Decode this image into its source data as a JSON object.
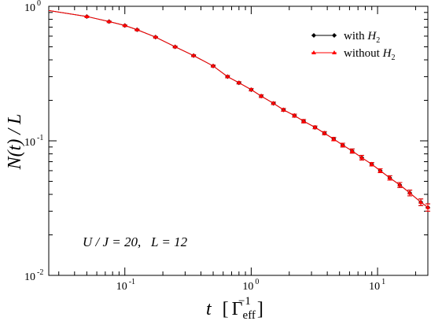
{
  "chart_data": {
    "type": "line",
    "xscale": "log",
    "yscale": "log",
    "xlim": [
      0.025,
      25
    ],
    "ylim": [
      0.01,
      1
    ],
    "xticks": [
      {
        "value": 0.1,
        "base": "10",
        "exp": "-1"
      },
      {
        "value": 1,
        "base": "10",
        "exp": "0"
      },
      {
        "value": 10,
        "base": "10",
        "exp": "1"
      }
    ],
    "yticks": [
      {
        "value": 0.01,
        "base": "10",
        "exp": "-2"
      },
      {
        "value": 0.1,
        "base": "10",
        "exp": "-1"
      },
      {
        "value": 1,
        "base": "10",
        "exp": "0"
      }
    ],
    "xlabel": {
      "main": "t",
      "bracket_open": "[",
      "gamma": "Γ",
      "sub": "eff",
      "sup": "−1",
      "bracket_close": "]"
    },
    "ylabel": "N(t) / L",
    "legend": {
      "position": "top-right",
      "entries": [
        {
          "text": "with ",
          "math": "H",
          "sub": "2",
          "color": "#000000",
          "marker": "diamond"
        },
        {
          "text": "without ",
          "math": "H",
          "sub": "2",
          "color": "#ff0000",
          "marker": "triangle"
        }
      ]
    },
    "annotation": {
      "text": "U / J = 20,   L = 12"
    },
    "grid": false,
    "series": [
      {
        "name": "with H2",
        "color": "#000000",
        "marker": "diamond",
        "x": [
          0.025,
          0.05,
          0.075,
          0.1,
          0.125,
          0.175,
          0.25,
          0.35,
          0.5,
          0.65,
          0.8,
          1.0,
          1.2,
          1.5,
          1.8,
          2.2,
          2.6,
          3.2,
          3.8,
          4.5,
          5.3,
          6.3,
          7.5,
          9.0,
          10.5,
          12.5,
          15.0,
          18.0,
          22.0,
          25.0
        ],
        "y": [
          0.93,
          0.84,
          0.77,
          0.72,
          0.67,
          0.59,
          0.5,
          0.43,
          0.36,
          0.3,
          0.27,
          0.24,
          0.215,
          0.19,
          0.17,
          0.154,
          0.14,
          0.126,
          0.114,
          0.103,
          0.093,
          0.084,
          0.075,
          0.067,
          0.06,
          0.053,
          0.047,
          0.041,
          0.035,
          0.032
        ],
        "err": [
          0.004,
          0.006,
          0.006,
          0.006,
          0.006,
          0.006,
          0.006,
          0.006,
          0.006,
          0.006,
          0.005,
          0.005,
          0.005,
          0.004,
          0.004,
          0.004,
          0.004,
          0.003,
          0.003,
          0.003,
          0.003,
          0.003,
          0.003,
          0.002,
          0.002,
          0.002,
          0.002,
          0.002,
          0.002,
          0.002
        ]
      },
      {
        "name": "without H2",
        "color": "#ff0000",
        "marker": "triangle",
        "x": [
          0.025,
          0.05,
          0.075,
          0.1,
          0.125,
          0.175,
          0.25,
          0.35,
          0.5,
          0.65,
          0.8,
          1.0,
          1.2,
          1.5,
          1.8,
          2.2,
          2.6,
          3.2,
          3.8,
          4.5,
          5.3,
          6.3,
          7.5,
          9.0,
          10.5,
          12.5,
          15.0,
          18.0,
          22.0,
          25.0
        ],
        "y": [
          0.93,
          0.84,
          0.77,
          0.72,
          0.67,
          0.59,
          0.5,
          0.43,
          0.36,
          0.3,
          0.27,
          0.24,
          0.215,
          0.19,
          0.17,
          0.154,
          0.14,
          0.126,
          0.114,
          0.103,
          0.093,
          0.084,
          0.075,
          0.067,
          0.06,
          0.053,
          0.047,
          0.041,
          0.035,
          0.032
        ],
        "err": [
          0.004,
          0.006,
          0.006,
          0.006,
          0.006,
          0.006,
          0.006,
          0.006,
          0.006,
          0.006,
          0.005,
          0.005,
          0.005,
          0.004,
          0.004,
          0.004,
          0.004,
          0.003,
          0.003,
          0.003,
          0.003,
          0.003,
          0.003,
          0.002,
          0.002,
          0.002,
          0.002,
          0.002,
          0.002,
          0.002
        ]
      }
    ]
  }
}
